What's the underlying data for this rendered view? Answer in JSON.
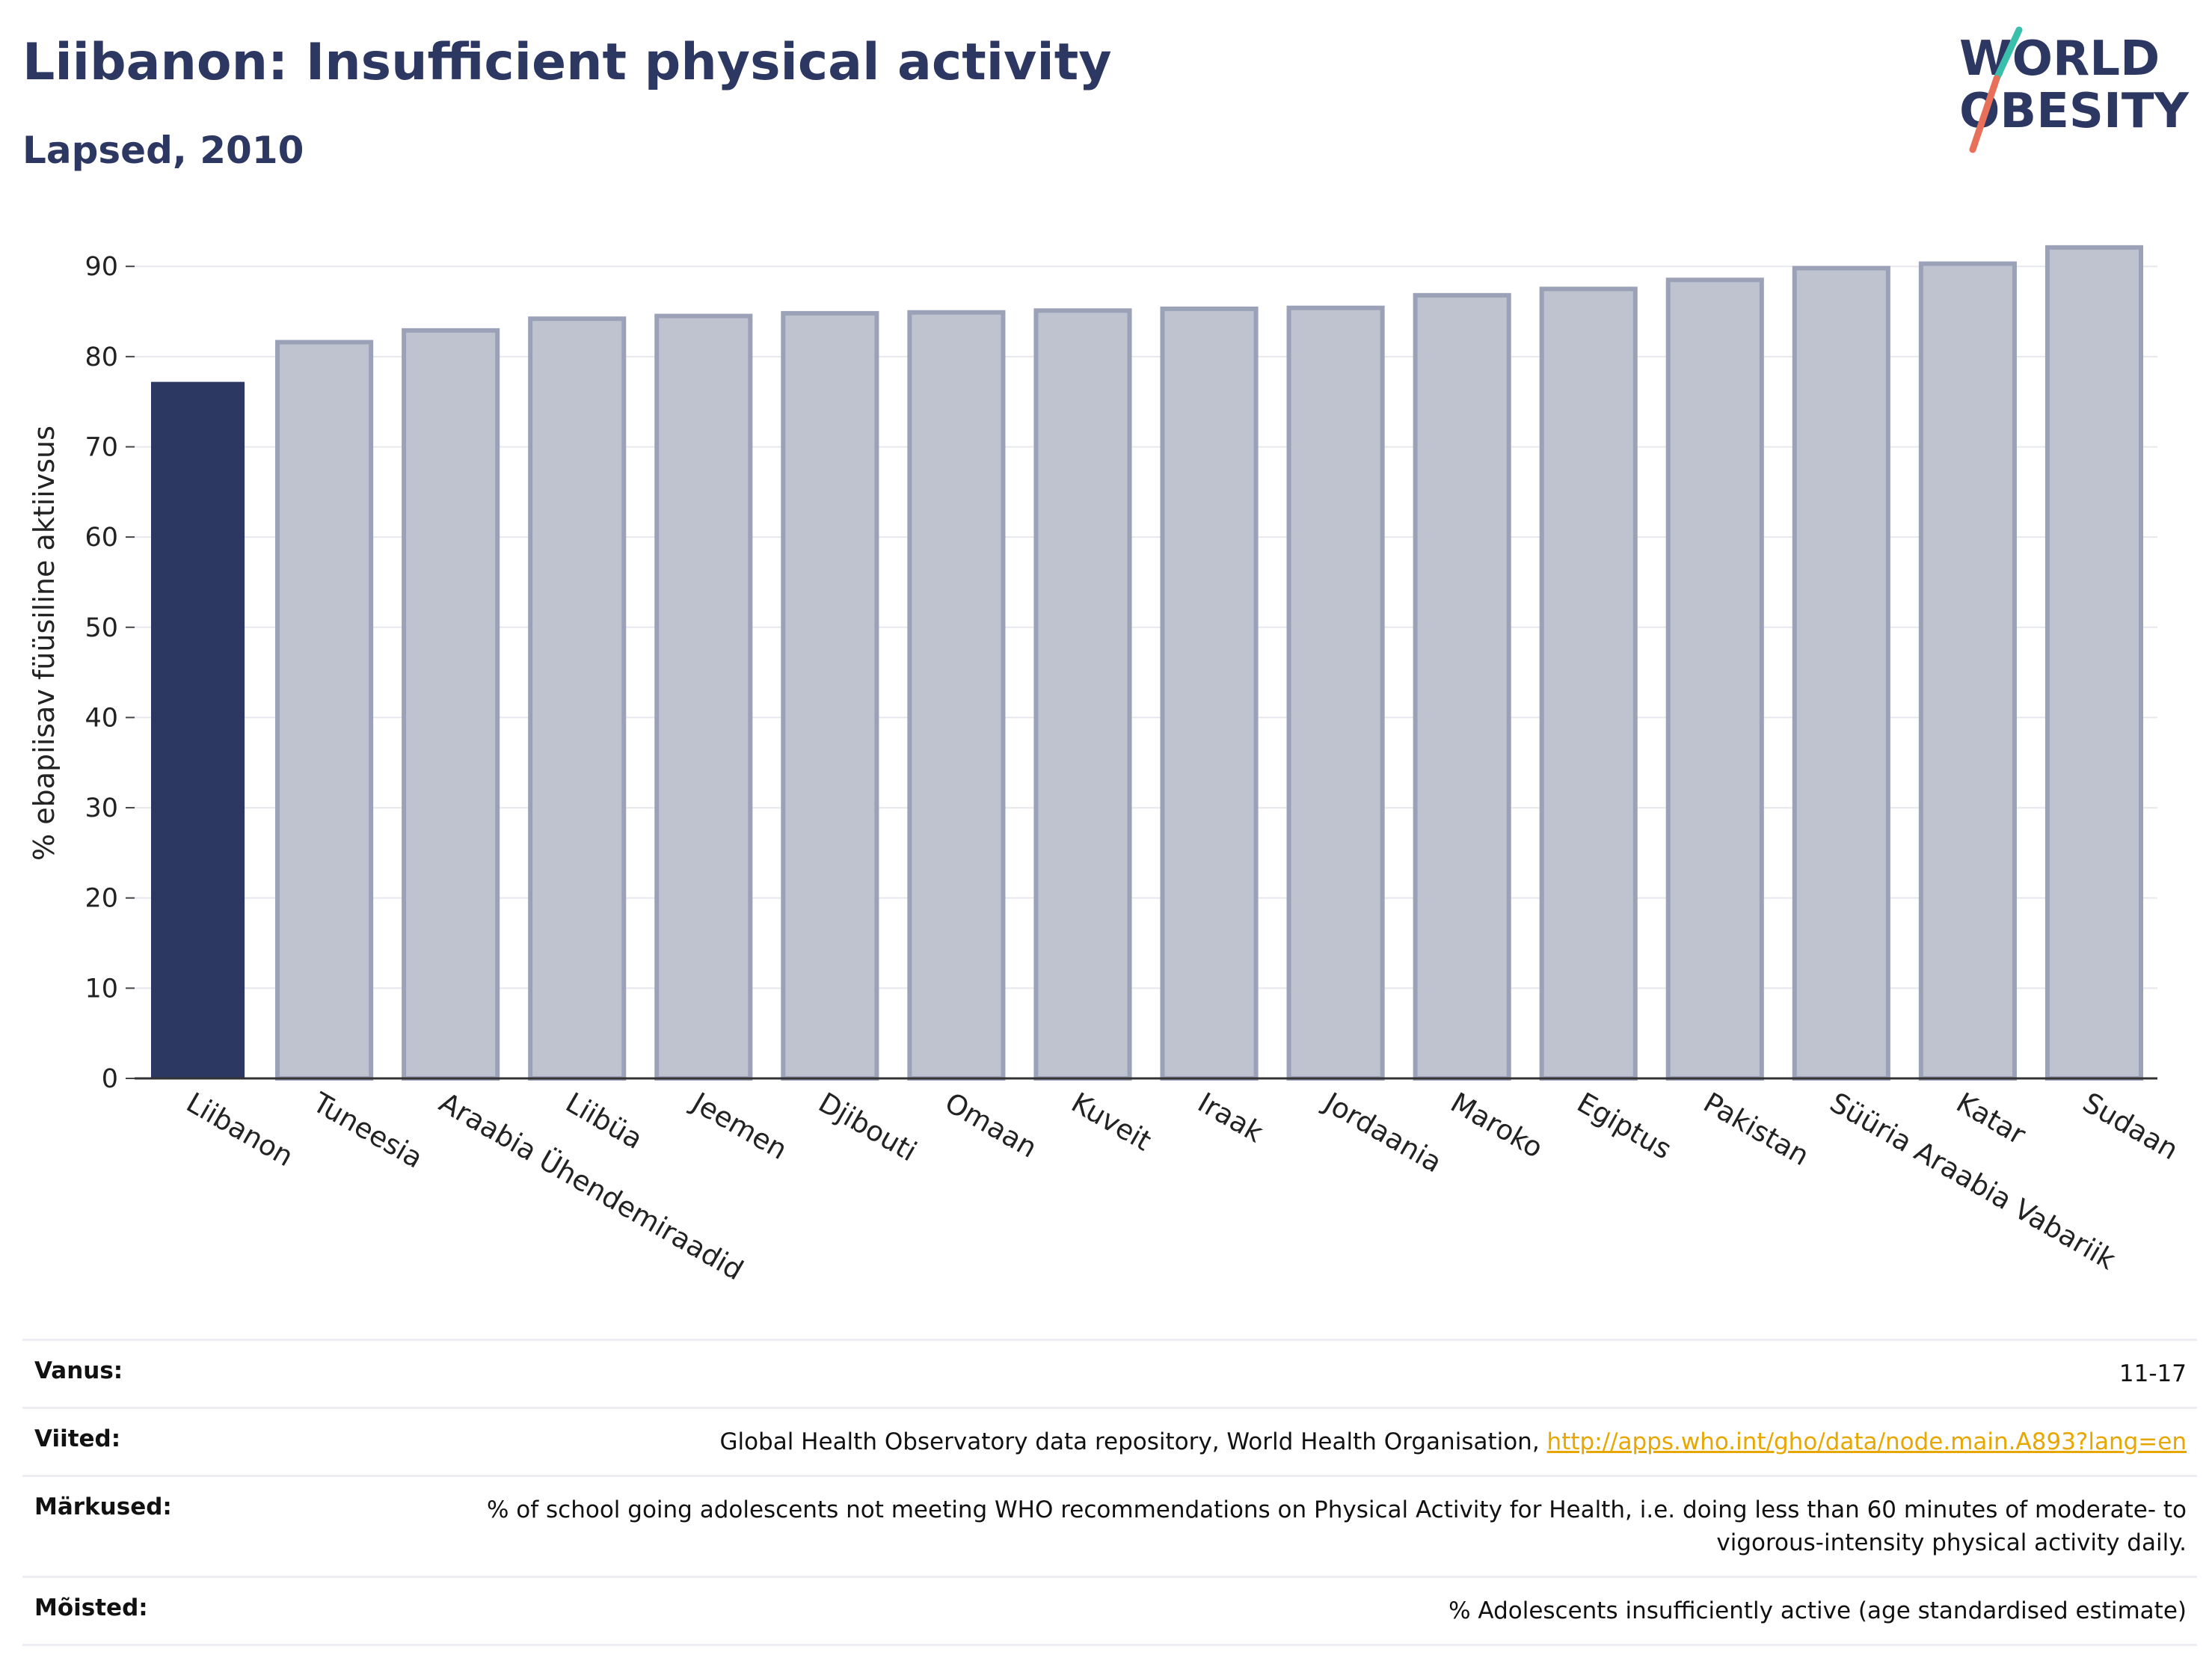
{
  "header": {
    "title": "Liibanon: Insufficient physical activity",
    "subtitle": "Lapsed, 2010"
  },
  "logo": {
    "text_line1": "WORLD",
    "text_line2": "OBESITY",
    "colors": {
      "text": "#2c3762",
      "accent_teal": "#3bbfad",
      "accent_coral": "#e8705b"
    }
  },
  "colors": {
    "highlight_bar": "#2c3762",
    "other_bar": "#bfc3cf",
    "other_bar_border": "#9ba2b8",
    "grid": "#e6e8ee",
    "link": "#e8a700"
  },
  "chart_data": {
    "type": "bar",
    "title": "Liibanon: Insufficient physical activity",
    "subtitle": "Lapsed, 2010",
    "ylabel": "% ebapiisav füüsiline aktiivsus",
    "xlabel": "",
    "ylim": [
      0,
      93
    ],
    "yticks": [
      0,
      10,
      20,
      30,
      40,
      50,
      60,
      70,
      80,
      90
    ],
    "grid": true,
    "highlight": "Liibanon",
    "categories": [
      "Liibanon",
      "Tuneesia",
      "Araabia Ühendemiraadid",
      "Liibüa",
      "Jeemen",
      "Djibouti",
      "Omaan",
      "Kuveit",
      "Iraak",
      "Jordaania",
      "Maroko",
      "Egiptus",
      "Pakistan",
      "Süüria Araabia Vabariik",
      "Katar",
      "Sudaan"
    ],
    "values": [
      77.2,
      81.6,
      82.9,
      84.2,
      84.5,
      84.8,
      84.9,
      85.1,
      85.3,
      85.4,
      86.8,
      87.5,
      88.5,
      89.8,
      90.3,
      92.1
    ]
  },
  "meta": [
    {
      "key": "Vanus:",
      "value": "11-17"
    },
    {
      "key": "Viited:",
      "value": "Global Health Observatory data repository, World Health Organisation, ",
      "link": "http://apps.who.int/gho/data/node.main.A893?lang=en"
    },
    {
      "key": "Märkused:",
      "value": "% of school going adolescents not meeting WHO recommendations on Physical Activity for Health, i.e. doing less than 60 minutes of moderate- to vigorous-intensity physical activity daily."
    },
    {
      "key": "Mõisted:",
      "value": "% Adolescents insufficiently active (age standardised estimate)"
    }
  ]
}
